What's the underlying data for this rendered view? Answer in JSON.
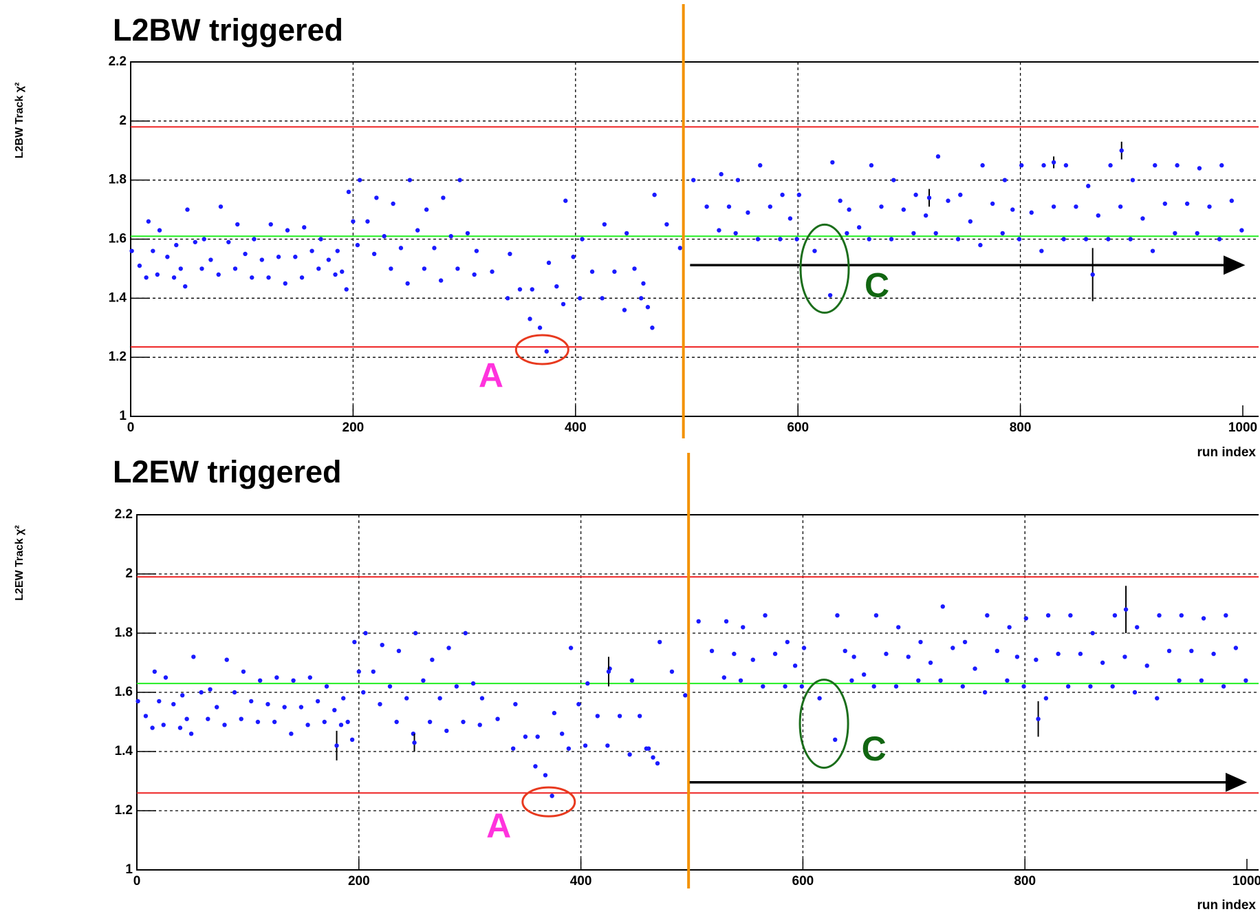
{
  "chart_data": [
    {
      "type": "scatter",
      "title": "L2BW triggered",
      "y_label": "L2BW Track χ²",
      "x_label": "run index",
      "xlim": [
        0,
        1000
      ],
      "ylim": [
        1,
        2.2
      ],
      "xticks": [
        0,
        200,
        400,
        600,
        800,
        1000
      ],
      "yticks": [
        1,
        1.2,
        1.4,
        1.6,
        1.8,
        2,
        2.2
      ],
      "grid": true,
      "color": "#1a1aff",
      "x": [
        1,
        8,
        14,
        16,
        20,
        24,
        26,
        33,
        39,
        41,
        45,
        49,
        51,
        58,
        64,
        66,
        72,
        79,
        81,
        88,
        94,
        96,
        103,
        109,
        111,
        118,
        124,
        126,
        133,
        139,
        141,
        148,
        154,
        156,
        163,
        169,
        171,
        178,
        184,
        186,
        190,
        194,
        196,
        200,
        204,
        206,
        213,
        219,
        221,
        228,
        234,
        236,
        243,
        249,
        251,
        258,
        264,
        266,
        273,
        279,
        281,
        288,
        294,
        296,
        303,
        309,
        311,
        325,
        339,
        341,
        350,
        359,
        361,
        368,
        374,
        376,
        383,
        389,
        391,
        398,
        404,
        406,
        415,
        424,
        426,
        435,
        444,
        446,
        453,
        459,
        461,
        465,
        469,
        471,
        482,
        494,
        506,
        518,
        529,
        531,
        538,
        544,
        546,
        555,
        564,
        566,
        575,
        584,
        586,
        593,
        599,
        601,
        615,
        629,
        631,
        638,
        644,
        646,
        655,
        664,
        666,
        675,
        684,
        686,
        695,
        704,
        706,
        715,
        724,
        726,
        735,
        744,
        746,
        755,
        764,
        766,
        775,
        784,
        786,
        793,
        799,
        801,
        810,
        819,
        821,
        830,
        839,
        841,
        850,
        859,
        861,
        870,
        879,
        881,
        890,
        899,
        901,
        910,
        919,
        921,
        930,
        939,
        941,
        950,
        959,
        961,
        970,
        979,
        981,
        990,
        999
      ],
      "values": [
        1.56,
        1.51,
        1.47,
        1.66,
        1.56,
        1.48,
        1.63,
        1.54,
        1.47,
        1.58,
        1.5,
        1.44,
        1.7,
        1.59,
        1.5,
        1.6,
        1.53,
        1.48,
        1.71,
        1.59,
        1.5,
        1.65,
        1.55,
        1.47,
        1.6,
        1.53,
        1.47,
        1.65,
        1.54,
        1.45,
        1.63,
        1.54,
        1.47,
        1.64,
        1.56,
        1.5,
        1.6,
        1.53,
        1.48,
        1.56,
        1.49,
        1.43,
        1.76,
        1.66,
        1.58,
        1.8,
        1.66,
        1.55,
        1.74,
        1.61,
        1.5,
        1.72,
        1.57,
        1.45,
        1.8,
        1.63,
        1.5,
        1.7,
        1.57,
        1.46,
        1.74,
        1.61,
        1.5,
        1.8,
        1.62,
        1.48,
        1.56,
        1.49,
        1.4,
        1.55,
        1.43,
        1.33,
        1.43,
        1.3,
        1.22,
        1.52,
        1.44,
        1.38,
        1.73,
        1.54,
        1.4,
        1.6,
        1.49,
        1.4,
        1.65,
        1.49,
        1.36,
        1.62,
        1.5,
        1.4,
        1.45,
        1.37,
        1.3,
        1.75,
        1.65,
        1.57,
        1.8,
        1.71,
        1.63,
        1.82,
        1.71,
        1.62,
        1.8,
        1.69,
        1.6,
        1.85,
        1.71,
        1.6,
        1.75,
        1.67,
        1.6,
        1.75,
        1.56,
        1.41,
        1.86,
        1.73,
        1.62,
        1.7,
        1.64,
        1.6,
        1.85,
        1.71,
        1.6,
        1.8,
        1.7,
        1.62,
        1.75,
        1.68,
        1.62,
        1.88,
        1.73,
        1.6,
        1.75,
        1.66,
        1.58,
        1.85,
        1.72,
        1.62,
        1.8,
        1.7,
        1.6,
        1.85,
        1.69,
        1.56,
        1.85,
        1.71,
        1.6,
        1.85,
        1.71,
        1.6,
        1.78,
        1.68,
        1.6,
        1.85,
        1.71,
        1.6,
        1.8,
        1.67,
        1.56,
        1.85,
        1.72,
        1.62,
        1.85,
        1.72,
        1.62,
        1.84,
        1.71,
        1.6,
        1.85,
        1.73,
        1.63
      ],
      "error_bars": {
        "x": [
          718,
          830,
          865,
          891
        ],
        "values": [
          1.74,
          1.86,
          1.48,
          1.9
        ],
        "errors": [
          0.03,
          0.02,
          0.09,
          0.03
        ]
      },
      "hlines": [
        {
          "value": 1.98,
          "color": "#ee2222"
        },
        {
          "value": 1.235,
          "color": "#ee2222"
        },
        {
          "value": 1.61,
          "color": "#22ee22"
        }
      ],
      "vline": {
        "value": 497,
        "color": "#f39200"
      },
      "arrow": {
        "x": [
          503,
          1000
        ],
        "y": 1.512
      },
      "highlights": [
        {
          "x": 370,
          "y": 1.226,
          "color": "#e83a1f"
        },
        {
          "x": 624,
          "y": 1.5,
          "color": "#1b6e1b"
        }
      ],
      "annotations": [
        {
          "text": "A",
          "x": 324,
          "y": 1.13,
          "color": "#ff33dd"
        },
        {
          "text": "C",
          "x": 671,
          "y": 1.435,
          "color": "#116611"
        }
      ]
    },
    {
      "type": "scatter",
      "title": "L2EW triggered",
      "y_label": "L2EW Track χ²",
      "x_label": "run index",
      "xlim": [
        0,
        1000
      ],
      "ylim": [
        1,
        2.2
      ],
      "xticks": [
        0,
        200,
        400,
        600,
        800,
        1000
      ],
      "yticks": [
        1,
        1.2,
        1.4,
        1.6,
        1.8,
        2,
        2.2
      ],
      "grid": true,
      "color": "#1a1aff",
      "x": [
        1,
        8,
        14,
        16,
        20,
        24,
        26,
        33,
        39,
        41,
        45,
        49,
        51,
        58,
        64,
        66,
        72,
        79,
        81,
        88,
        94,
        96,
        103,
        109,
        111,
        118,
        124,
        126,
        133,
        139,
        141,
        148,
        154,
        156,
        163,
        169,
        171,
        178,
        184,
        186,
        190,
        194,
        196,
        200,
        204,
        206,
        213,
        219,
        221,
        228,
        234,
        236,
        243,
        249,
        251,
        258,
        264,
        266,
        273,
        279,
        281,
        288,
        294,
        296,
        303,
        309,
        311,
        325,
        339,
        341,
        350,
        359,
        361,
        368,
        374,
        376,
        383,
        389,
        391,
        398,
        404,
        406,
        415,
        424,
        426,
        435,
        444,
        446,
        453,
        459,
        461,
        465,
        469,
        471,
        482,
        494,
        506,
        518,
        529,
        531,
        538,
        544,
        546,
        555,
        564,
        566,
        575,
        584,
        586,
        593,
        599,
        601,
        615,
        629,
        631,
        638,
        644,
        646,
        655,
        664,
        666,
        675,
        684,
        686,
        695,
        704,
        706,
        715,
        724,
        726,
        735,
        744,
        746,
        755,
        764,
        766,
        775,
        784,
        786,
        793,
        799,
        801,
        810,
        819,
        821,
        830,
        839,
        841,
        850,
        859,
        861,
        870,
        879,
        881,
        890,
        899,
        901,
        910,
        919,
        921,
        930,
        939,
        941,
        950,
        959,
        961,
        970,
        979,
        981,
        990,
        999
      ],
      "values": [
        1.57,
        1.52,
        1.48,
        1.67,
        1.57,
        1.49,
        1.65,
        1.56,
        1.48,
        1.59,
        1.51,
        1.46,
        1.72,
        1.6,
        1.51,
        1.61,
        1.55,
        1.49,
        1.71,
        1.6,
        1.51,
        1.67,
        1.57,
        1.5,
        1.64,
        1.56,
        1.5,
        1.65,
        1.55,
        1.46,
        1.64,
        1.55,
        1.49,
        1.65,
        1.57,
        1.5,
        1.62,
        1.54,
        1.49,
        1.58,
        1.5,
        1.44,
        1.77,
        1.67,
        1.6,
        1.8,
        1.67,
        1.56,
        1.76,
        1.62,
        1.5,
        1.74,
        1.58,
        1.46,
        1.8,
        1.64,
        1.5,
        1.71,
        1.58,
        1.47,
        1.75,
        1.62,
        1.5,
        1.8,
        1.63,
        1.49,
        1.58,
        1.51,
        1.41,
        1.56,
        1.45,
        1.35,
        1.45,
        1.32,
        1.25,
        1.53,
        1.46,
        1.41,
        1.75,
        1.56,
        1.42,
        1.63,
        1.52,
        1.42,
        1.68,
        1.52,
        1.39,
        1.64,
        1.52,
        1.41,
        1.41,
        1.38,
        1.36,
        1.77,
        1.67,
        1.59,
        1.84,
        1.74,
        1.65,
        1.84,
        1.73,
        1.64,
        1.82,
        1.71,
        1.62,
        1.86,
        1.73,
        1.62,
        1.77,
        1.69,
        1.62,
        1.75,
        1.58,
        1.44,
        1.86,
        1.74,
        1.64,
        1.72,
        1.66,
        1.62,
        1.86,
        1.73,
        1.62,
        1.82,
        1.72,
        1.64,
        1.77,
        1.7,
        1.64,
        1.89,
        1.75,
        1.62,
        1.77,
        1.68,
        1.6,
        1.86,
        1.74,
        1.64,
        1.82,
        1.72,
        1.62,
        1.85,
        1.71,
        1.58,
        1.86,
        1.73,
        1.62,
        1.86,
        1.73,
        1.62,
        1.8,
        1.7,
        1.62,
        1.86,
        1.72,
        1.6,
        1.82,
        1.69,
        1.58,
        1.86,
        1.74,
        1.64,
        1.86,
        1.74,
        1.64,
        1.85,
        1.73,
        1.62,
        1.86,
        1.75,
        1.64
      ],
      "error_bars": {
        "x": [
          180,
          250,
          425,
          812,
          891
        ],
        "values": [
          1.42,
          1.43,
          1.67,
          1.51,
          1.88
        ],
        "errors": [
          0.05,
          0.03,
          0.05,
          0.06,
          0.08
        ]
      },
      "hlines": [
        {
          "value": 1.99,
          "color": "#ee2222"
        },
        {
          "value": 1.26,
          "color": "#ee2222"
        },
        {
          "value": 1.63,
          "color": "#22ee22"
        }
      ],
      "vline": {
        "value": 497,
        "color": "#f39200"
      },
      "arrow": {
        "x": [
          498,
          998
        ],
        "y": 1.296
      },
      "highlights": [
        {
          "x": 371,
          "y": 1.23,
          "color": "#e83a1f"
        },
        {
          "x": 619,
          "y": 1.494,
          "color": "#1b6e1b"
        }
      ],
      "annotations": [
        {
          "text": "A",
          "x": 326,
          "y": 1.14,
          "color": "#ff33dd"
        },
        {
          "text": "C",
          "x": 664,
          "y": 1.4,
          "color": "#116611"
        }
      ]
    }
  ]
}
